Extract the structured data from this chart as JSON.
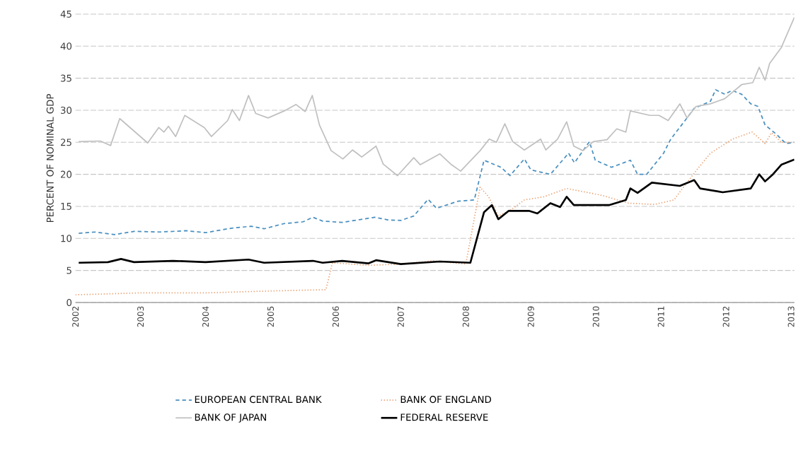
{
  "chart_data": {
    "type": "line",
    "ylabel": "PERCENT OF NOMINAL GDP",
    "xlim": [
      2002,
      2013.05
    ],
    "xticks": [
      2002,
      2003,
      2004,
      2005,
      2006,
      2007,
      2008,
      2009,
      2010,
      2011,
      2012,
      2013
    ],
    "ylim": [
      0,
      45
    ],
    "yticks": [
      0,
      5,
      10,
      15,
      20,
      25,
      30,
      35,
      40,
      45
    ],
    "grid": "y",
    "legend": "bottom",
    "series": [
      {
        "name": "EUROPEAN CENTRAL BANK",
        "color": "#4a90c0",
        "line_style": "dashed",
        "x": [
          2002.05,
          2002.3,
          2002.6,
          2002.9,
          2003.3,
          2003.7,
          2004.0,
          2004.4,
          2004.7,
          2004.9,
          2005.2,
          2005.5,
          2005.65,
          2005.8,
          2006.1,
          2006.6,
          2006.8,
          2007.0,
          2007.2,
          2007.42,
          2007.55,
          2007.88,
          2008.13,
          2008.28,
          2008.54,
          2008.68,
          2008.9,
          2009.0,
          2009.3,
          2009.58,
          2009.67,
          2009.9,
          2009.99,
          2010.24,
          2010.53,
          2010.64,
          2010.78,
          2011.04,
          2011.15,
          2011.37,
          2011.51,
          2011.76,
          2011.84,
          2011.98,
          2012.09,
          2012.24,
          2012.38,
          2012.49,
          2012.6,
          2012.78,
          2012.92,
          2013.05
        ],
        "values": [
          10.8,
          11,
          10.6,
          11.1,
          11,
          11.2,
          10.9,
          11.6,
          11.9,
          11.5,
          12.3,
          12.6,
          13.3,
          12.7,
          12.5,
          13.3,
          12.9,
          12.8,
          13.5,
          16.1,
          14.7,
          15.8,
          16,
          22.2,
          21.1,
          19.8,
          22.4,
          20.7,
          20,
          23.3,
          21.8,
          25.1,
          22.2,
          21.1,
          22.2,
          20,
          20,
          23.3,
          25.5,
          28.4,
          30.3,
          31.4,
          33.2,
          32.5,
          33.1,
          32.5,
          31,
          30.6,
          27.7,
          26.2,
          24.8,
          25
        ]
      },
      {
        "name": "BANK OF ENGLAND",
        "color": "#e8a070",
        "line_style": "dotted",
        "x": [
          2002.0,
          2003.0,
          2004.0,
          2005.0,
          2005.85,
          2005.95,
          2006.5,
          2007.0,
          2007.5,
          2008.0,
          2008.22,
          2008.35,
          2008.5,
          2008.7,
          2008.9,
          2009.2,
          2009.55,
          2010.1,
          2010.5,
          2010.9,
          2011.2,
          2011.3,
          2011.55,
          2011.76,
          2012.1,
          2012.4,
          2012.6,
          2012.7,
          2012.85,
          2013.05
        ],
        "values": [
          1.2,
          1.5,
          1.5,
          1.8,
          2,
          6.2,
          5.8,
          6,
          6.5,
          6,
          18,
          16.5,
          13.5,
          14.5,
          16,
          16.5,
          17.8,
          16.7,
          15.5,
          15.3,
          16,
          17.4,
          20.7,
          23.3,
          25.5,
          26.6,
          24.8,
          26.5,
          25,
          25
        ]
      },
      {
        "name": "BANK OF JAPAN",
        "color": "#c0c0c0",
        "line_style": "solid",
        "x": [
          2002.05,
          2002.38,
          2002.54,
          2002.68,
          2003.11,
          2003.28,
          2003.36,
          2003.43,
          2003.54,
          2003.68,
          2003.98,
          2004.09,
          2004.34,
          2004.41,
          2004.52,
          2004.66,
          2004.77,
          2004.96,
          2005.21,
          2005.39,
          2005.53,
          2005.64,
          2005.75,
          2005.93,
          2006.11,
          2006.26,
          2006.4,
          2006.62,
          2006.73,
          2006.95,
          2007.2,
          2007.3,
          2007.6,
          2007.78,
          2007.92,
          2008.22,
          2008.36,
          2008.47,
          2008.6,
          2008.72,
          2008.9,
          2009.15,
          2009.23,
          2009.41,
          2009.55,
          2009.66,
          2009.8,
          2009.96,
          2010.17,
          2010.32,
          2010.46,
          2010.53,
          2010.83,
          2010.97,
          2011.11,
          2011.29,
          2011.4,
          2011.54,
          2011.76,
          2011.98,
          2012.24,
          2012.41,
          2012.51,
          2012.6,
          2012.67,
          2012.85,
          2013.05
        ],
        "values": [
          25.1,
          25.2,
          24.5,
          28.7,
          24.9,
          27.3,
          26.6,
          27.5,
          25.9,
          29.2,
          27.3,
          25.9,
          28.4,
          30.1,
          28.4,
          32.3,
          29.5,
          28.8,
          29.9,
          30.9,
          29.8,
          32.3,
          27.7,
          23.7,
          22.4,
          23.8,
          22.7,
          24.4,
          21.6,
          19.8,
          22.6,
          21.5,
          23.2,
          21.5,
          20.5,
          23.7,
          25.5,
          25,
          27.9,
          25.1,
          23.8,
          25.5,
          23.8,
          25.5,
          28.2,
          24.4,
          23.7,
          25.1,
          25.4,
          27.1,
          26.6,
          29.9,
          29.2,
          29.2,
          28.4,
          31,
          28.8,
          30.6,
          31,
          31.8,
          34,
          34.3,
          36.7,
          34.7,
          37.3,
          39.8,
          44.5
        ]
      },
      {
        "name": "FEDERAL RESERVE",
        "color": "#000000",
        "line_style": "solid",
        "x": [
          2002.05,
          2002.5,
          2002.7,
          2002.9,
          2003.5,
          2004.0,
          2004.66,
          2004.9,
          2005.65,
          2005.8,
          2006.1,
          2006.5,
          2006.62,
          2007.0,
          2007.6,
          2008.07,
          2008.28,
          2008.4,
          2008.5,
          2008.66,
          2008.97,
          2009.1,
          2009.3,
          2009.45,
          2009.55,
          2009.66,
          2010.2,
          2010.46,
          2010.53,
          2010.64,
          2010.86,
          2011.29,
          2011.51,
          2011.6,
          2011.95,
          2012.38,
          2012.51,
          2012.6,
          2012.72,
          2012.85,
          2013.05
        ],
        "values": [
          6.2,
          6.3,
          6.8,
          6.3,
          6.5,
          6.3,
          6.7,
          6.2,
          6.5,
          6.2,
          6.5,
          6.1,
          6.6,
          6,
          6.4,
          6.2,
          14.1,
          15.2,
          13,
          14.3,
          14.3,
          13.9,
          15.5,
          14.9,
          16.5,
          15.2,
          15.2,
          16,
          17.8,
          17.1,
          18.7,
          18.2,
          19.1,
          17.8,
          17.2,
          17.8,
          20,
          18.9,
          20,
          21.5,
          22.3
        ]
      }
    ]
  }
}
